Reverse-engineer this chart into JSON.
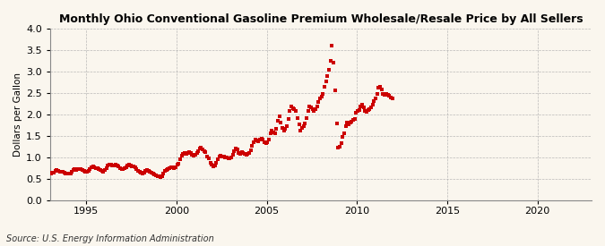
{
  "title": "Monthly Ohio Conventional Gasoline Premium Wholesale/Resale Price by All Sellers",
  "ylabel": "Dollars per Gallon",
  "source": "Source: U.S. Energy Information Administration",
  "background_color": "#faf6ee",
  "plot_background_color": "#faf6ee",
  "marker_color": "#cc0000",
  "marker_size": 3.5,
  "xlim_start": 1993,
  "xlim_end": 2023,
  "ylim": [
    0.0,
    4.0
  ],
  "yticks": [
    0.0,
    0.5,
    1.0,
    1.5,
    2.0,
    2.5,
    3.0,
    3.5,
    4.0
  ],
  "xticks": [
    1995,
    2000,
    2005,
    2010,
    2015,
    2020
  ],
  "data": [
    [
      1993,
      1,
      0.62
    ],
    [
      1993,
      2,
      0.64
    ],
    [
      1993,
      3,
      0.65
    ],
    [
      1993,
      4,
      0.68
    ],
    [
      1993,
      5,
      0.7
    ],
    [
      1993,
      6,
      0.68
    ],
    [
      1993,
      7,
      0.67
    ],
    [
      1993,
      8,
      0.67
    ],
    [
      1993,
      9,
      0.66
    ],
    [
      1993,
      10,
      0.64
    ],
    [
      1993,
      11,
      0.63
    ],
    [
      1993,
      12,
      0.62
    ],
    [
      1994,
      1,
      0.62
    ],
    [
      1994,
      2,
      0.63
    ],
    [
      1994,
      3,
      0.66
    ],
    [
      1994,
      4,
      0.7
    ],
    [
      1994,
      5,
      0.72
    ],
    [
      1994,
      6,
      0.71
    ],
    [
      1994,
      7,
      0.72
    ],
    [
      1994,
      8,
      0.73
    ],
    [
      1994,
      9,
      0.72
    ],
    [
      1994,
      10,
      0.7
    ],
    [
      1994,
      11,
      0.68
    ],
    [
      1994,
      12,
      0.66
    ],
    [
      1995,
      1,
      0.66
    ],
    [
      1995,
      2,
      0.68
    ],
    [
      1995,
      3,
      0.72
    ],
    [
      1995,
      4,
      0.76
    ],
    [
      1995,
      5,
      0.78
    ],
    [
      1995,
      6,
      0.76
    ],
    [
      1995,
      7,
      0.75
    ],
    [
      1995,
      8,
      0.74
    ],
    [
      1995,
      9,
      0.73
    ],
    [
      1995,
      10,
      0.71
    ],
    [
      1995,
      11,
      0.68
    ],
    [
      1995,
      12,
      0.67
    ],
    [
      1996,
      1,
      0.7
    ],
    [
      1996,
      2,
      0.74
    ],
    [
      1996,
      3,
      0.8
    ],
    [
      1996,
      4,
      0.82
    ],
    [
      1996,
      5,
      0.83
    ],
    [
      1996,
      6,
      0.8
    ],
    [
      1996,
      7,
      0.8
    ],
    [
      1996,
      8,
      0.82
    ],
    [
      1996,
      9,
      0.8
    ],
    [
      1996,
      10,
      0.78
    ],
    [
      1996,
      11,
      0.74
    ],
    [
      1996,
      12,
      0.72
    ],
    [
      1997,
      1,
      0.72
    ],
    [
      1997,
      2,
      0.74
    ],
    [
      1997,
      3,
      0.77
    ],
    [
      1997,
      4,
      0.8
    ],
    [
      1997,
      5,
      0.82
    ],
    [
      1997,
      6,
      0.8
    ],
    [
      1997,
      7,
      0.79
    ],
    [
      1997,
      8,
      0.78
    ],
    [
      1997,
      9,
      0.76
    ],
    [
      1997,
      10,
      0.72
    ],
    [
      1997,
      11,
      0.68
    ],
    [
      1997,
      12,
      0.66
    ],
    [
      1998,
      1,
      0.64
    ],
    [
      1998,
      2,
      0.62
    ],
    [
      1998,
      3,
      0.64
    ],
    [
      1998,
      4,
      0.68
    ],
    [
      1998,
      5,
      0.7
    ],
    [
      1998,
      6,
      0.68
    ],
    [
      1998,
      7,
      0.66
    ],
    [
      1998,
      8,
      0.64
    ],
    [
      1998,
      9,
      0.62
    ],
    [
      1998,
      10,
      0.6
    ],
    [
      1998,
      11,
      0.58
    ],
    [
      1998,
      12,
      0.56
    ],
    [
      1999,
      1,
      0.55
    ],
    [
      1999,
      2,
      0.54
    ],
    [
      1999,
      3,
      0.56
    ],
    [
      1999,
      4,
      0.62
    ],
    [
      1999,
      5,
      0.68
    ],
    [
      1999,
      6,
      0.7
    ],
    [
      1999,
      7,
      0.72
    ],
    [
      1999,
      8,
      0.74
    ],
    [
      1999,
      9,
      0.76
    ],
    [
      1999,
      10,
      0.76
    ],
    [
      1999,
      11,
      0.74
    ],
    [
      1999,
      12,
      0.76
    ],
    [
      2000,
      1,
      0.82
    ],
    [
      2000,
      2,
      0.86
    ],
    [
      2000,
      3,
      0.96
    ],
    [
      2000,
      4,
      1.04
    ],
    [
      2000,
      5,
      1.08
    ],
    [
      2000,
      6,
      1.1
    ],
    [
      2000,
      7,
      1.08
    ],
    [
      2000,
      8,
      1.1
    ],
    [
      2000,
      9,
      1.12
    ],
    [
      2000,
      10,
      1.1
    ],
    [
      2000,
      11,
      1.06
    ],
    [
      2000,
      12,
      1.04
    ],
    [
      2001,
      1,
      1.06
    ],
    [
      2001,
      2,
      1.1
    ],
    [
      2001,
      3,
      1.14
    ],
    [
      2001,
      4,
      1.2
    ],
    [
      2001,
      5,
      1.22
    ],
    [
      2001,
      6,
      1.18
    ],
    [
      2001,
      7,
      1.14
    ],
    [
      2001,
      8,
      1.12
    ],
    [
      2001,
      9,
      1.02
    ],
    [
      2001,
      10,
      0.98
    ],
    [
      2001,
      11,
      0.88
    ],
    [
      2001,
      12,
      0.82
    ],
    [
      2002,
      1,
      0.78
    ],
    [
      2002,
      2,
      0.8
    ],
    [
      2002,
      3,
      0.88
    ],
    [
      2002,
      4,
      0.96
    ],
    [
      2002,
      5,
      1.02
    ],
    [
      2002,
      6,
      1.04
    ],
    [
      2002,
      7,
      1.02
    ],
    [
      2002,
      8,
      1.02
    ],
    [
      2002,
      9,
      1.0
    ],
    [
      2002,
      10,
      1.0
    ],
    [
      2002,
      11,
      0.98
    ],
    [
      2002,
      12,
      0.98
    ],
    [
      2003,
      1,
      1.0
    ],
    [
      2003,
      2,
      1.06
    ],
    [
      2003,
      3,
      1.14
    ],
    [
      2003,
      4,
      1.2
    ],
    [
      2003,
      5,
      1.18
    ],
    [
      2003,
      6,
      1.1
    ],
    [
      2003,
      7,
      1.08
    ],
    [
      2003,
      8,
      1.12
    ],
    [
      2003,
      9,
      1.1
    ],
    [
      2003,
      10,
      1.08
    ],
    [
      2003,
      11,
      1.06
    ],
    [
      2003,
      12,
      1.08
    ],
    [
      2004,
      1,
      1.1
    ],
    [
      2004,
      2,
      1.16
    ],
    [
      2004,
      3,
      1.26
    ],
    [
      2004,
      4,
      1.36
    ],
    [
      2004,
      5,
      1.42
    ],
    [
      2004,
      6,
      1.4
    ],
    [
      2004,
      7,
      1.38
    ],
    [
      2004,
      8,
      1.42
    ],
    [
      2004,
      9,
      1.44
    ],
    [
      2004,
      10,
      1.42
    ],
    [
      2004,
      11,
      1.36
    ],
    [
      2004,
      12,
      1.32
    ],
    [
      2005,
      1,
      1.36
    ],
    [
      2005,
      2,
      1.42
    ],
    [
      2005,
      3,
      1.56
    ],
    [
      2005,
      4,
      1.62
    ],
    [
      2005,
      5,
      1.58
    ],
    [
      2005,
      6,
      1.56
    ],
    [
      2005,
      7,
      1.66
    ],
    [
      2005,
      8,
      1.86
    ],
    [
      2005,
      9,
      1.96
    ],
    [
      2005,
      10,
      1.8
    ],
    [
      2005,
      11,
      1.68
    ],
    [
      2005,
      12,
      1.62
    ],
    [
      2006,
      1,
      1.66
    ],
    [
      2006,
      2,
      1.72
    ],
    [
      2006,
      3,
      1.9
    ],
    [
      2006,
      4,
      2.08
    ],
    [
      2006,
      5,
      2.18
    ],
    [
      2006,
      6,
      2.14
    ],
    [
      2006,
      7,
      2.12
    ],
    [
      2006,
      8,
      2.08
    ],
    [
      2006,
      9,
      1.92
    ],
    [
      2006,
      10,
      1.76
    ],
    [
      2006,
      11,
      1.62
    ],
    [
      2006,
      12,
      1.68
    ],
    [
      2007,
      1,
      1.72
    ],
    [
      2007,
      2,
      1.78
    ],
    [
      2007,
      3,
      1.92
    ],
    [
      2007,
      4,
      2.08
    ],
    [
      2007,
      5,
      2.18
    ],
    [
      2007,
      6,
      2.16
    ],
    [
      2007,
      7,
      2.12
    ],
    [
      2007,
      8,
      2.08
    ],
    [
      2007,
      9,
      2.12
    ],
    [
      2007,
      10,
      2.18
    ],
    [
      2007,
      11,
      2.28
    ],
    [
      2007,
      12,
      2.38
    ],
    [
      2008,
      1,
      2.42
    ],
    [
      2008,
      2,
      2.48
    ],
    [
      2008,
      3,
      2.64
    ],
    [
      2008,
      4,
      2.76
    ],
    [
      2008,
      5,
      2.9
    ],
    [
      2008,
      6,
      3.04
    ],
    [
      2008,
      7,
      3.24
    ],
    [
      2008,
      8,
      3.6
    ],
    [
      2008,
      9,
      3.2
    ],
    [
      2008,
      10,
      2.56
    ],
    [
      2008,
      11,
      1.78
    ],
    [
      2008,
      12,
      1.22
    ],
    [
      2009,
      1,
      1.24
    ],
    [
      2009,
      2,
      1.32
    ],
    [
      2009,
      3,
      1.48
    ],
    [
      2009,
      4,
      1.56
    ],
    [
      2009,
      5,
      1.72
    ],
    [
      2009,
      6,
      1.82
    ],
    [
      2009,
      7,
      1.76
    ],
    [
      2009,
      8,
      1.82
    ],
    [
      2009,
      9,
      1.84
    ],
    [
      2009,
      10,
      1.88
    ],
    [
      2009,
      11,
      1.9
    ],
    [
      2009,
      12,
      2.04
    ],
    [
      2010,
      1,
      2.08
    ],
    [
      2010,
      2,
      2.1
    ],
    [
      2010,
      3,
      2.18
    ],
    [
      2010,
      4,
      2.22
    ],
    [
      2010,
      5,
      2.16
    ],
    [
      2010,
      6,
      2.08
    ],
    [
      2010,
      7,
      2.06
    ],
    [
      2010,
      8,
      2.1
    ],
    [
      2010,
      9,
      2.12
    ],
    [
      2010,
      10,
      2.16
    ],
    [
      2010,
      11,
      2.22
    ],
    [
      2010,
      12,
      2.3
    ],
    [
      2011,
      1,
      2.38
    ],
    [
      2011,
      2,
      2.48
    ],
    [
      2011,
      3,
      2.62
    ],
    [
      2011,
      4,
      2.64
    ],
    [
      2011,
      5,
      2.58
    ],
    [
      2011,
      6,
      2.48
    ],
    [
      2011,
      7,
      2.46
    ],
    [
      2011,
      8,
      2.48
    ],
    [
      2011,
      9,
      2.46
    ],
    [
      2011,
      10,
      2.44
    ],
    [
      2011,
      11,
      2.4
    ],
    [
      2011,
      12,
      2.38
    ]
  ]
}
